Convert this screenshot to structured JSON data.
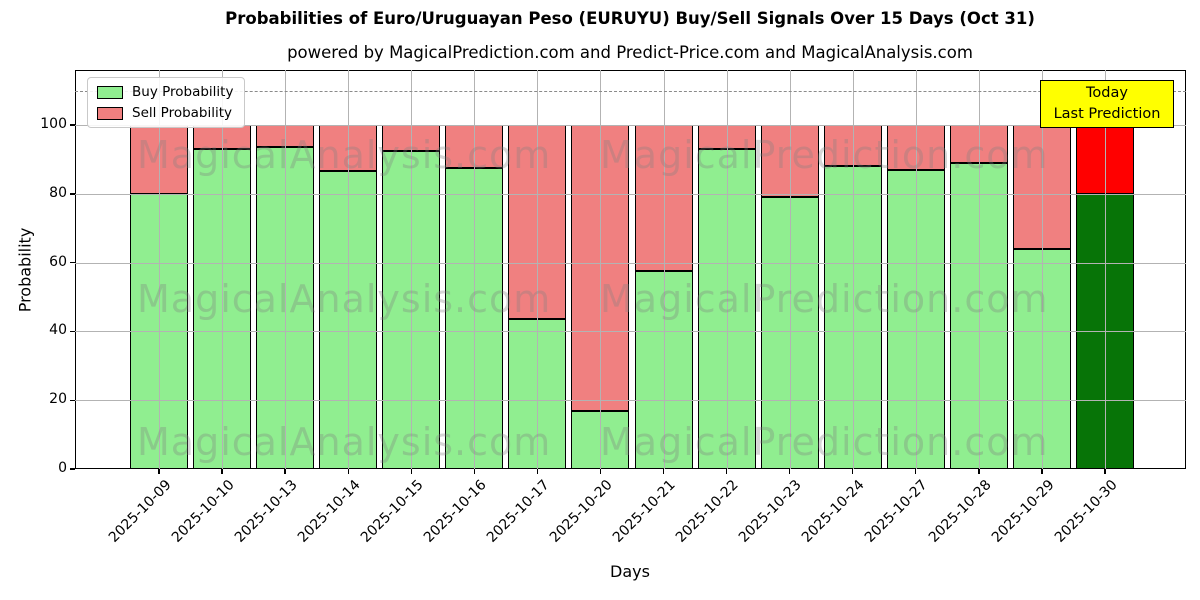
{
  "chart_data": {
    "type": "bar",
    "stacked": true,
    "title": "Probabilities of Euro/Uruguayan Peso (EURUYU) Buy/Sell Signals Over 15 Days (Oct 31)",
    "subtitle": "powered by MagicalPrediction.com and Predict-Price.com and MagicalAnalysis.com",
    "xlabel": "Days",
    "ylabel": "Probability",
    "ylim": [
      0,
      116
    ],
    "yticks": [
      0,
      20,
      40,
      60,
      80,
      100
    ],
    "dashed_line_y": 110,
    "grid": true,
    "categories": [
      "2025-10-09",
      "2025-10-10",
      "2025-10-13",
      "2025-10-14",
      "2025-10-15",
      "2025-10-16",
      "2025-10-17",
      "2025-10-20",
      "2025-10-21",
      "2025-10-22",
      "2025-10-23",
      "2025-10-24",
      "2025-10-27",
      "2025-10-28",
      "2025-10-29",
      "2025-10-30"
    ],
    "series": [
      {
        "name": "Buy Probability",
        "color": "#90ee90",
        "values": [
          80,
          93,
          93.5,
          86.5,
          92.5,
          87.5,
          43.5,
          17,
          57.5,
          93,
          79,
          88,
          87,
          89,
          64,
          80
        ]
      },
      {
        "name": "Sell Probability",
        "color": "#f08080",
        "values": [
          20,
          7,
          6.5,
          13.5,
          7.5,
          12.5,
          56.5,
          83,
          42.5,
          7,
          21,
          12,
          13,
          11,
          36,
          20
        ]
      }
    ],
    "today_bar": {
      "index": 15,
      "buy_color": "#077407",
      "sell_color": "#ff0000"
    },
    "legend": {
      "position": "upper-left",
      "entries": [
        {
          "label": "Buy Probability",
          "color": "#90ee90"
        },
        {
          "label": "Sell Probability",
          "color": "#f08080"
        }
      ]
    },
    "annotation": {
      "lines": [
        "Today",
        "Last Prediction"
      ],
      "bg": "#ffff00"
    },
    "watermarks": [
      "MagicalAnalysis.com",
      "MagicalPrediction.com"
    ],
    "colors": {
      "grid": "#b3b3b3",
      "dashed_line": "#8a8a8a",
      "bar_edge": "#000000"
    }
  }
}
